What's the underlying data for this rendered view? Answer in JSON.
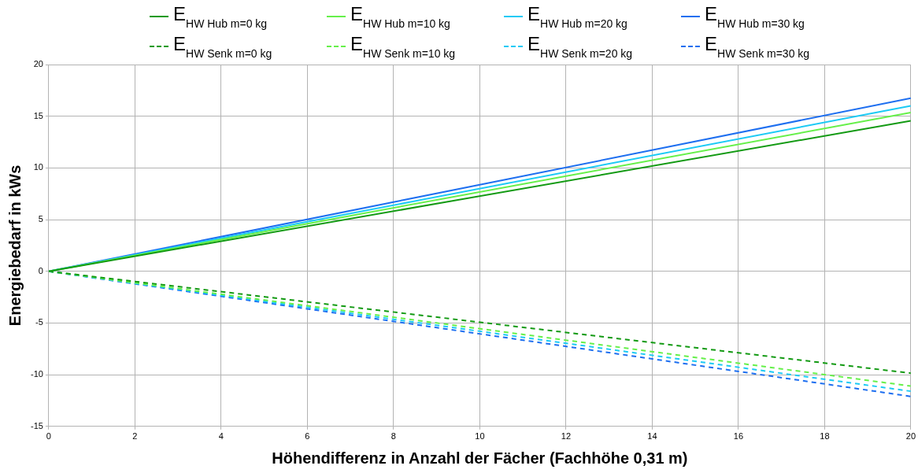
{
  "chart_data": {
    "type": "line",
    "xlabel": "Höhendifferenz in Anzahl der Fächer (Fachhöhe 0,31 m)",
    "ylabel": "Energiebedarf in kWs",
    "xlim": [
      0,
      20
    ],
    "xticks": [
      0,
      2,
      4,
      6,
      8,
      10,
      12,
      14,
      16,
      18,
      20
    ],
    "ylim": [
      -15,
      20
    ],
    "yticks": [
      -15,
      -10,
      -5,
      0,
      5,
      10,
      15,
      20
    ],
    "grid": true,
    "legend": "top",
    "marker": "none",
    "x": [
      0,
      20
    ],
    "series": [
      {
        "name": "E$_{HW Hub m=0 kg}$",
        "color": "#139a13",
        "values": [
          0,
          14.55
        ],
        "line_style": "solid"
      },
      {
        "name": "E$_{HW Hub m=10 kg}$",
        "color": "#66f04a",
        "values": [
          0,
          15.35
        ],
        "line_style": "solid"
      },
      {
        "name": "E$_{HW Hub m=20 kg}$",
        "color": "#1ccaf5",
        "values": [
          0,
          16.0
        ],
        "line_style": "solid"
      },
      {
        "name": "E$_{HW Hub m=30 kg}$",
        "color": "#1e6ff0",
        "values": [
          0,
          16.75
        ],
        "line_style": "solid"
      },
      {
        "name": "E$_{HW Senk m=0 kg}$",
        "color": "#139a13",
        "values": [
          0,
          -9.85
        ],
        "line_style": "dashed"
      },
      {
        "name": "E$_{HW Senk m=10 kg}$",
        "color": "#66f04a",
        "values": [
          0,
          -11.1
        ],
        "line_style": "dashed"
      },
      {
        "name": "E$_{HW Senk m=20 kg}$",
        "color": "#1ccaf5",
        "values": [
          0,
          -11.6
        ],
        "line_style": "dashed"
      },
      {
        "name": "E$_{HW Senk m=30 kg}$",
        "color": "#1e6ff0",
        "values": [
          0,
          -12.1
        ],
        "line_style": "dashed"
      }
    ]
  }
}
